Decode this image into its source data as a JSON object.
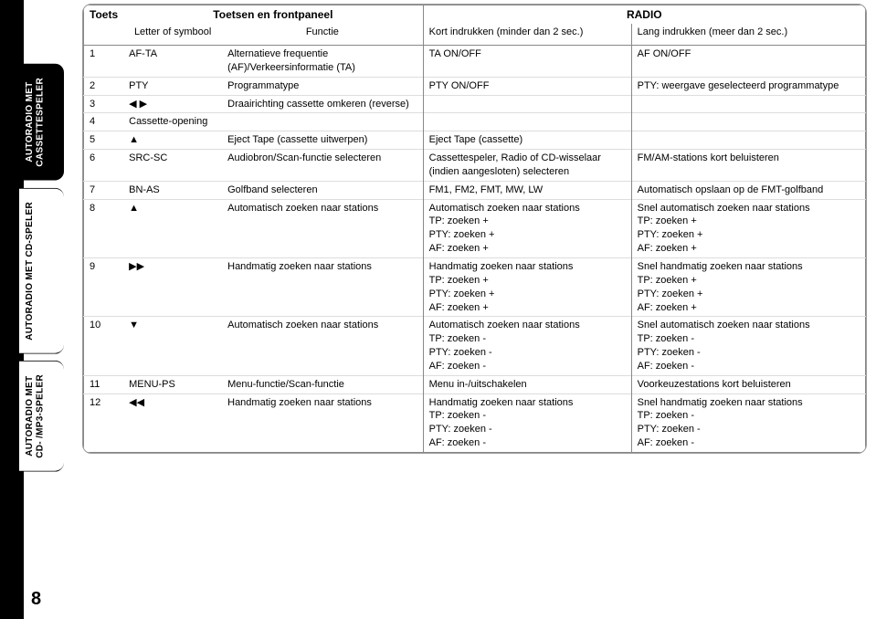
{
  "page_number": "8",
  "side_tabs": [
    {
      "label": "AUTORADIO MET\nCASSETTESPELER",
      "style": "black"
    },
    {
      "label": "AUTORADIO MET CD-SPELER",
      "style": "white"
    },
    {
      "label": "AUTORADIO MET\nCD- /MP3-SPELER",
      "style": "white"
    }
  ],
  "header": {
    "toets": "Toets",
    "toetsen_en_frontpaneel": "Toetsen en frontpaneel",
    "radio": "RADIO",
    "letter_of_symbool": "Letter of symbool",
    "functie": "Functie",
    "kort": "Kort indrukken (minder dan 2 sec.)",
    "lang": "Lang indrukken (meer dan 2 sec.)"
  },
  "symbols": {
    "left_right": "◀ ▶",
    "up": "▲",
    "ff": "▶▶",
    "down": "▼",
    "rew": "◀◀",
    "eject": "▲"
  },
  "rows": [
    {
      "n": "1",
      "sym": "AF-TA",
      "func": "Alternatieve frequentie (AF)/Verkeersinformatie (TA)",
      "kort": "TA ON/OFF",
      "lang": "AF ON/OFF"
    },
    {
      "n": "2",
      "sym": "PTY",
      "func": "Programmatype",
      "kort": "PTY ON/OFF",
      "lang": "PTY: weergave geselecteerd programmatype"
    },
    {
      "n": "3",
      "sym_key": "left_right",
      "func": "Draairichting cassette omkeren (reverse)",
      "kort": "",
      "lang": ""
    },
    {
      "n": "4",
      "sym": "Cassette-opening",
      "func": "",
      "kort": "",
      "lang": ""
    },
    {
      "n": "5",
      "sym_key": "eject",
      "func": "Eject Tape (cassette uitwerpen)",
      "kort": "Eject Tape (cassette)",
      "lang": ""
    },
    {
      "n": "6",
      "sym": "SRC-SC",
      "func": "Audiobron/Scan-functie selecteren",
      "kort": "Cassettespeler, Radio of CD-wisselaar (indien aangesloten) selecteren",
      "lang": "FM/AM-stations kort beluisteren"
    },
    {
      "n": "7",
      "sym": "BN-AS",
      "func": "Golfband selecteren",
      "kort": "FM1, FM2, FMT, MW, LW",
      "lang": "Automatisch opslaan op de FMT-golfband"
    },
    {
      "n": "8",
      "sym_key": "up",
      "func": "Automatisch zoeken naar stations",
      "kort": "Automatisch zoeken naar stations\nTP: zoeken +\nPTY: zoeken +\nAF: zoeken +",
      "lang": "Snel automatisch zoeken naar stations\nTP: zoeken +\nPTY: zoeken +\nAF: zoeken +"
    },
    {
      "n": "9",
      "sym_key": "ff",
      "func": "Handmatig zoeken naar stations",
      "kort": "Handmatig zoeken naar stations\nTP: zoeken +\nPTY: zoeken +\nAF: zoeken +",
      "lang": "Snel handmatig zoeken naar stations\nTP: zoeken +\nPTY: zoeken +\nAF: zoeken +"
    },
    {
      "n": "10",
      "sym_key": "down",
      "func": "Automatisch zoeken naar stations",
      "kort": "Automatisch zoeken naar stations\nTP: zoeken -\nPTY: zoeken -\nAF: zoeken -",
      "lang": "Snel automatisch zoeken naar stations\nTP: zoeken -\nPTY: zoeken -\nAF: zoeken -"
    },
    {
      "n": "11",
      "sym": "MENU-PS",
      "func": "Menu-functie/Scan-functie",
      "kort": "Menu in-/uitschakelen",
      "lang": "Voorkeuzestations kort beluisteren"
    },
    {
      "n": "12",
      "sym_key": "rew",
      "func": "Handmatig zoeken naar stations",
      "kort": "Handmatig zoeken naar stations\nTP: zoeken -\nPTY: zoeken -\nAF: zoeken -",
      "lang": "Snel handmatig zoeken naar stations\nTP: zoeken -\nPTY: zoeken -\nAF: zoeken -"
    }
  ]
}
